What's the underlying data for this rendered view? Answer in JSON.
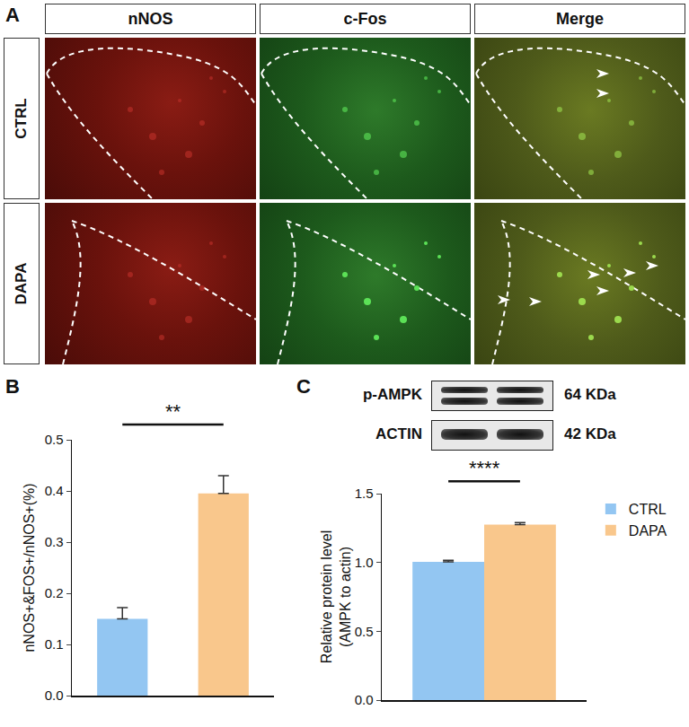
{
  "panel_a": {
    "panel": "A",
    "columns": [
      "nNOS",
      "c-Fos",
      "Merge"
    ],
    "rows": [
      "CTRL",
      "DAPA"
    ]
  },
  "blot": {
    "panel": "C",
    "rows": [
      {
        "label": "p-AMPK",
        "size": "64 KDa"
      },
      {
        "label": "ACTIN",
        "size": "42 KDa"
      }
    ]
  },
  "chart_data": [
    {
      "panel": "B",
      "type": "bar",
      "categories": [
        null,
        null
      ],
      "values": [
        0.15,
        0.395
      ],
      "errors": [
        0.022,
        0.035
      ],
      "colors": [
        "#93c6f2",
        "#f9c78c"
      ],
      "y_label": [
        "nNOS+&FOS+/nNOS+(%)"
      ],
      "ylim": [
        0,
        0.5
      ],
      "yticks": [
        {
          "value": 0,
          "label": "0.0"
        },
        {
          "value": 0.1,
          "label": "0.1"
        },
        {
          "value": 0.2,
          "label": "0.2"
        },
        {
          "value": 0.3,
          "label": "0.3"
        },
        {
          "value": 0.4,
          "label": "0.4"
        },
        {
          "value": 0.5,
          "label": "0.5"
        }
      ],
      "annotations": [
        "**"
      ],
      "tick_labels": "y"
    },
    {
      "type": "bar",
      "categories": [
        null
      ],
      "series": [
        {
          "name": "CTRL",
          "color": "#93c6f2",
          "values": [
            1.005
          ],
          "errors": [
            0.01
          ]
        },
        {
          "name": "DAPA",
          "color": "#f9c78c",
          "values": [
            1.275
          ],
          "errors": [
            0.015
          ]
        }
      ],
      "y_label": [
        "Relative protein level",
        "(AMPK to actin)"
      ],
      "ylim": [
        0,
        1.5
      ],
      "yticks": [
        {
          "value": 0,
          "label": "0.0"
        },
        {
          "value": 0.5,
          "label": "0.5"
        },
        {
          "value": 1,
          "label": "1.0"
        },
        {
          "value": 1.5,
          "label": "1.5"
        }
      ],
      "annotations": [
        "****"
      ],
      "legend": "right",
      "tick_labels": "y"
    }
  ]
}
